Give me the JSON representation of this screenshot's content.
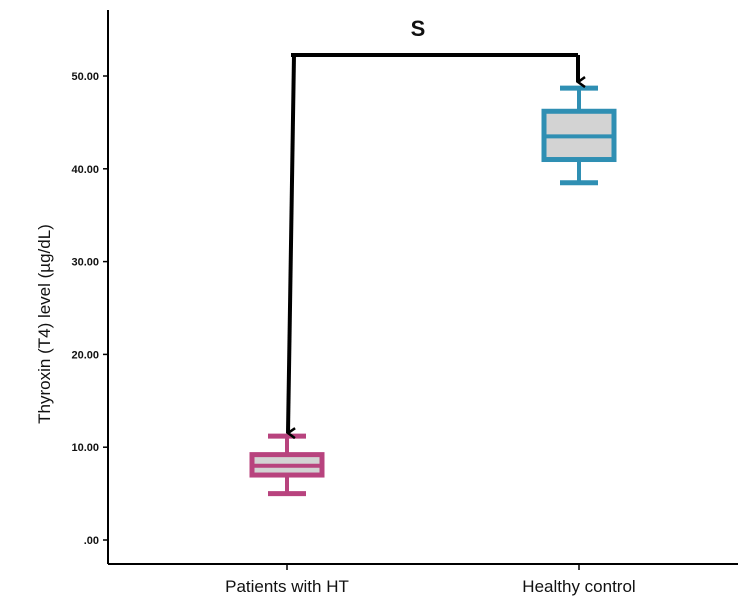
{
  "chart_data": {
    "type": "box",
    "ylabel": "Thyroxin (T4) level (µg/dL)",
    "ylim": [
      0,
      52.5
    ],
    "yticks": [
      0,
      10,
      20,
      30,
      40,
      50
    ],
    "ytick_labels": [
      ".00",
      "10.00",
      "20.00",
      "30.00",
      "40.00",
      "50.00"
    ],
    "grid": false,
    "categories": [
      "Patients with HT",
      "Healthy control"
    ],
    "boxes": [
      {
        "category": "Patients with HT",
        "min": 5.0,
        "q1": 7.0,
        "median": 8.0,
        "q3": 9.2,
        "max": 11.2,
        "color": "#b8437e"
      },
      {
        "category": "Healthy control",
        "min": 38.5,
        "q1": 41.0,
        "median": 43.5,
        "q3": 46.2,
        "max": 48.7,
        "color": "#2f8fb3"
      }
    ],
    "annotation": {
      "text": "S",
      "from": "Healthy control",
      "to": "Patients with HT"
    }
  }
}
